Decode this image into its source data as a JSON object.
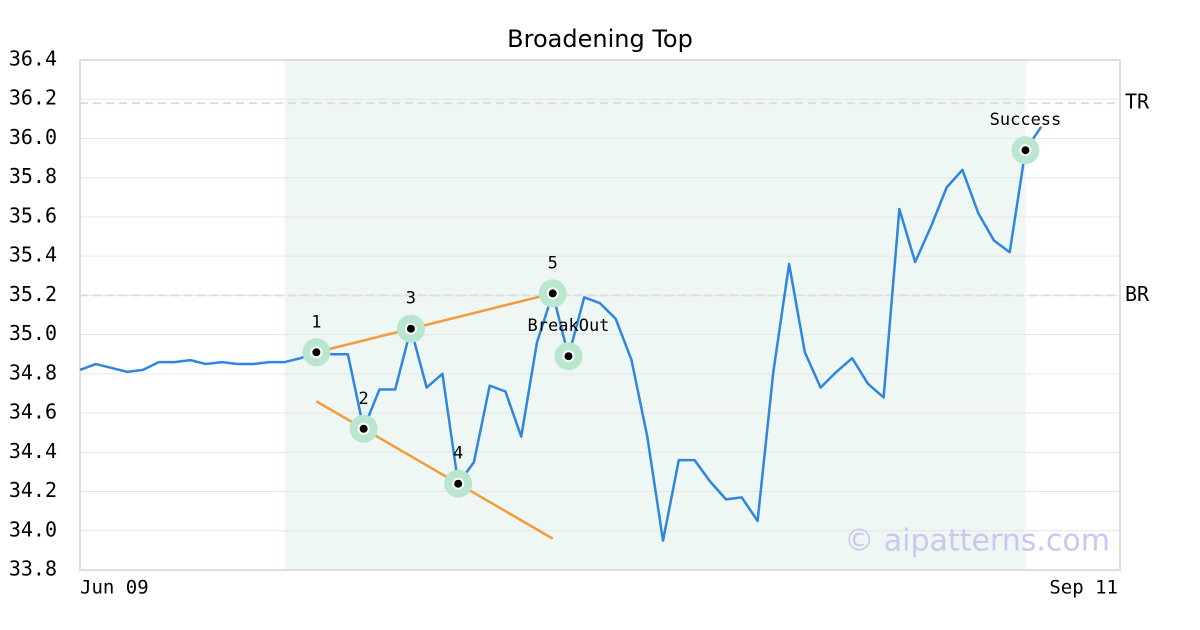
{
  "chart_data": {
    "type": "line",
    "title": "Broadening Top",
    "values": [
      34.82,
      34.85,
      34.83,
      34.81,
      34.82,
      34.86,
      34.86,
      34.87,
      34.85,
      34.86,
      34.85,
      34.85,
      34.86,
      34.86,
      34.88,
      34.91,
      34.9,
      34.9,
      34.52,
      34.72,
      34.72,
      35.03,
      34.73,
      34.8,
      34.24,
      34.35,
      34.74,
      34.71,
      34.48,
      34.96,
      35.21,
      34.89,
      35.19,
      35.16,
      35.08,
      34.87,
      34.48,
      33.95,
      34.36,
      34.36,
      34.25,
      34.16,
      34.17,
      34.05,
      34.81,
      35.36,
      34.91,
      34.73,
      34.81,
      34.88,
      34.75,
      34.68,
      35.64,
      35.37,
      35.55,
      35.75,
      35.84,
      35.62,
      35.48,
      35.42,
      35.94,
      36.06
    ],
    "color": "#2e86de",
    "xlim": [
      0,
      66
    ],
    "xticks": [
      {
        "value": 0,
        "label": "Jun 09"
      },
      {
        "value": 66,
        "label": "Sep 11"
      }
    ],
    "ylim": [
      33.8,
      36.4
    ],
    "yticks": [
      33.8,
      {
        "value": 34,
        "label": "34.0"
      },
      34.2,
      34.4,
      34.6,
      34.8,
      {
        "value": 35,
        "label": "35.0"
      },
      35.2,
      35.4,
      35.6,
      35.8,
      {
        "value": 36,
        "label": "36.0"
      },
      36.2,
      36.4
    ],
    "grid": true,
    "highlight": [
      13,
      60
    ],
    "points": [
      {
        "label": "1",
        "index": 15
      },
      {
        "label": "2",
        "index": 18
      },
      {
        "label": "3",
        "index": 21
      },
      {
        "label": "4",
        "index": 24
      },
      {
        "label": "5",
        "index": 30
      },
      {
        "label": "BreakOut",
        "index": 31
      },
      {
        "label": "Success",
        "index": 60
      }
    ],
    "trend_lines": [
      {
        "x": [
          15,
          30
        ],
        "y": [
          34.91,
          35.21
        ],
        "color": "#f39c3c"
      },
      {
        "x": [
          15,
          30
        ],
        "y": [
          34.66,
          33.96
        ],
        "color": "#f39c3c"
      }
    ],
    "levels": [
      {
        "label": "TR",
        "value": 36.18
      },
      {
        "label": "BR",
        "value": 35.2
      }
    ],
    "watermark": "© aipatterns.com"
  }
}
